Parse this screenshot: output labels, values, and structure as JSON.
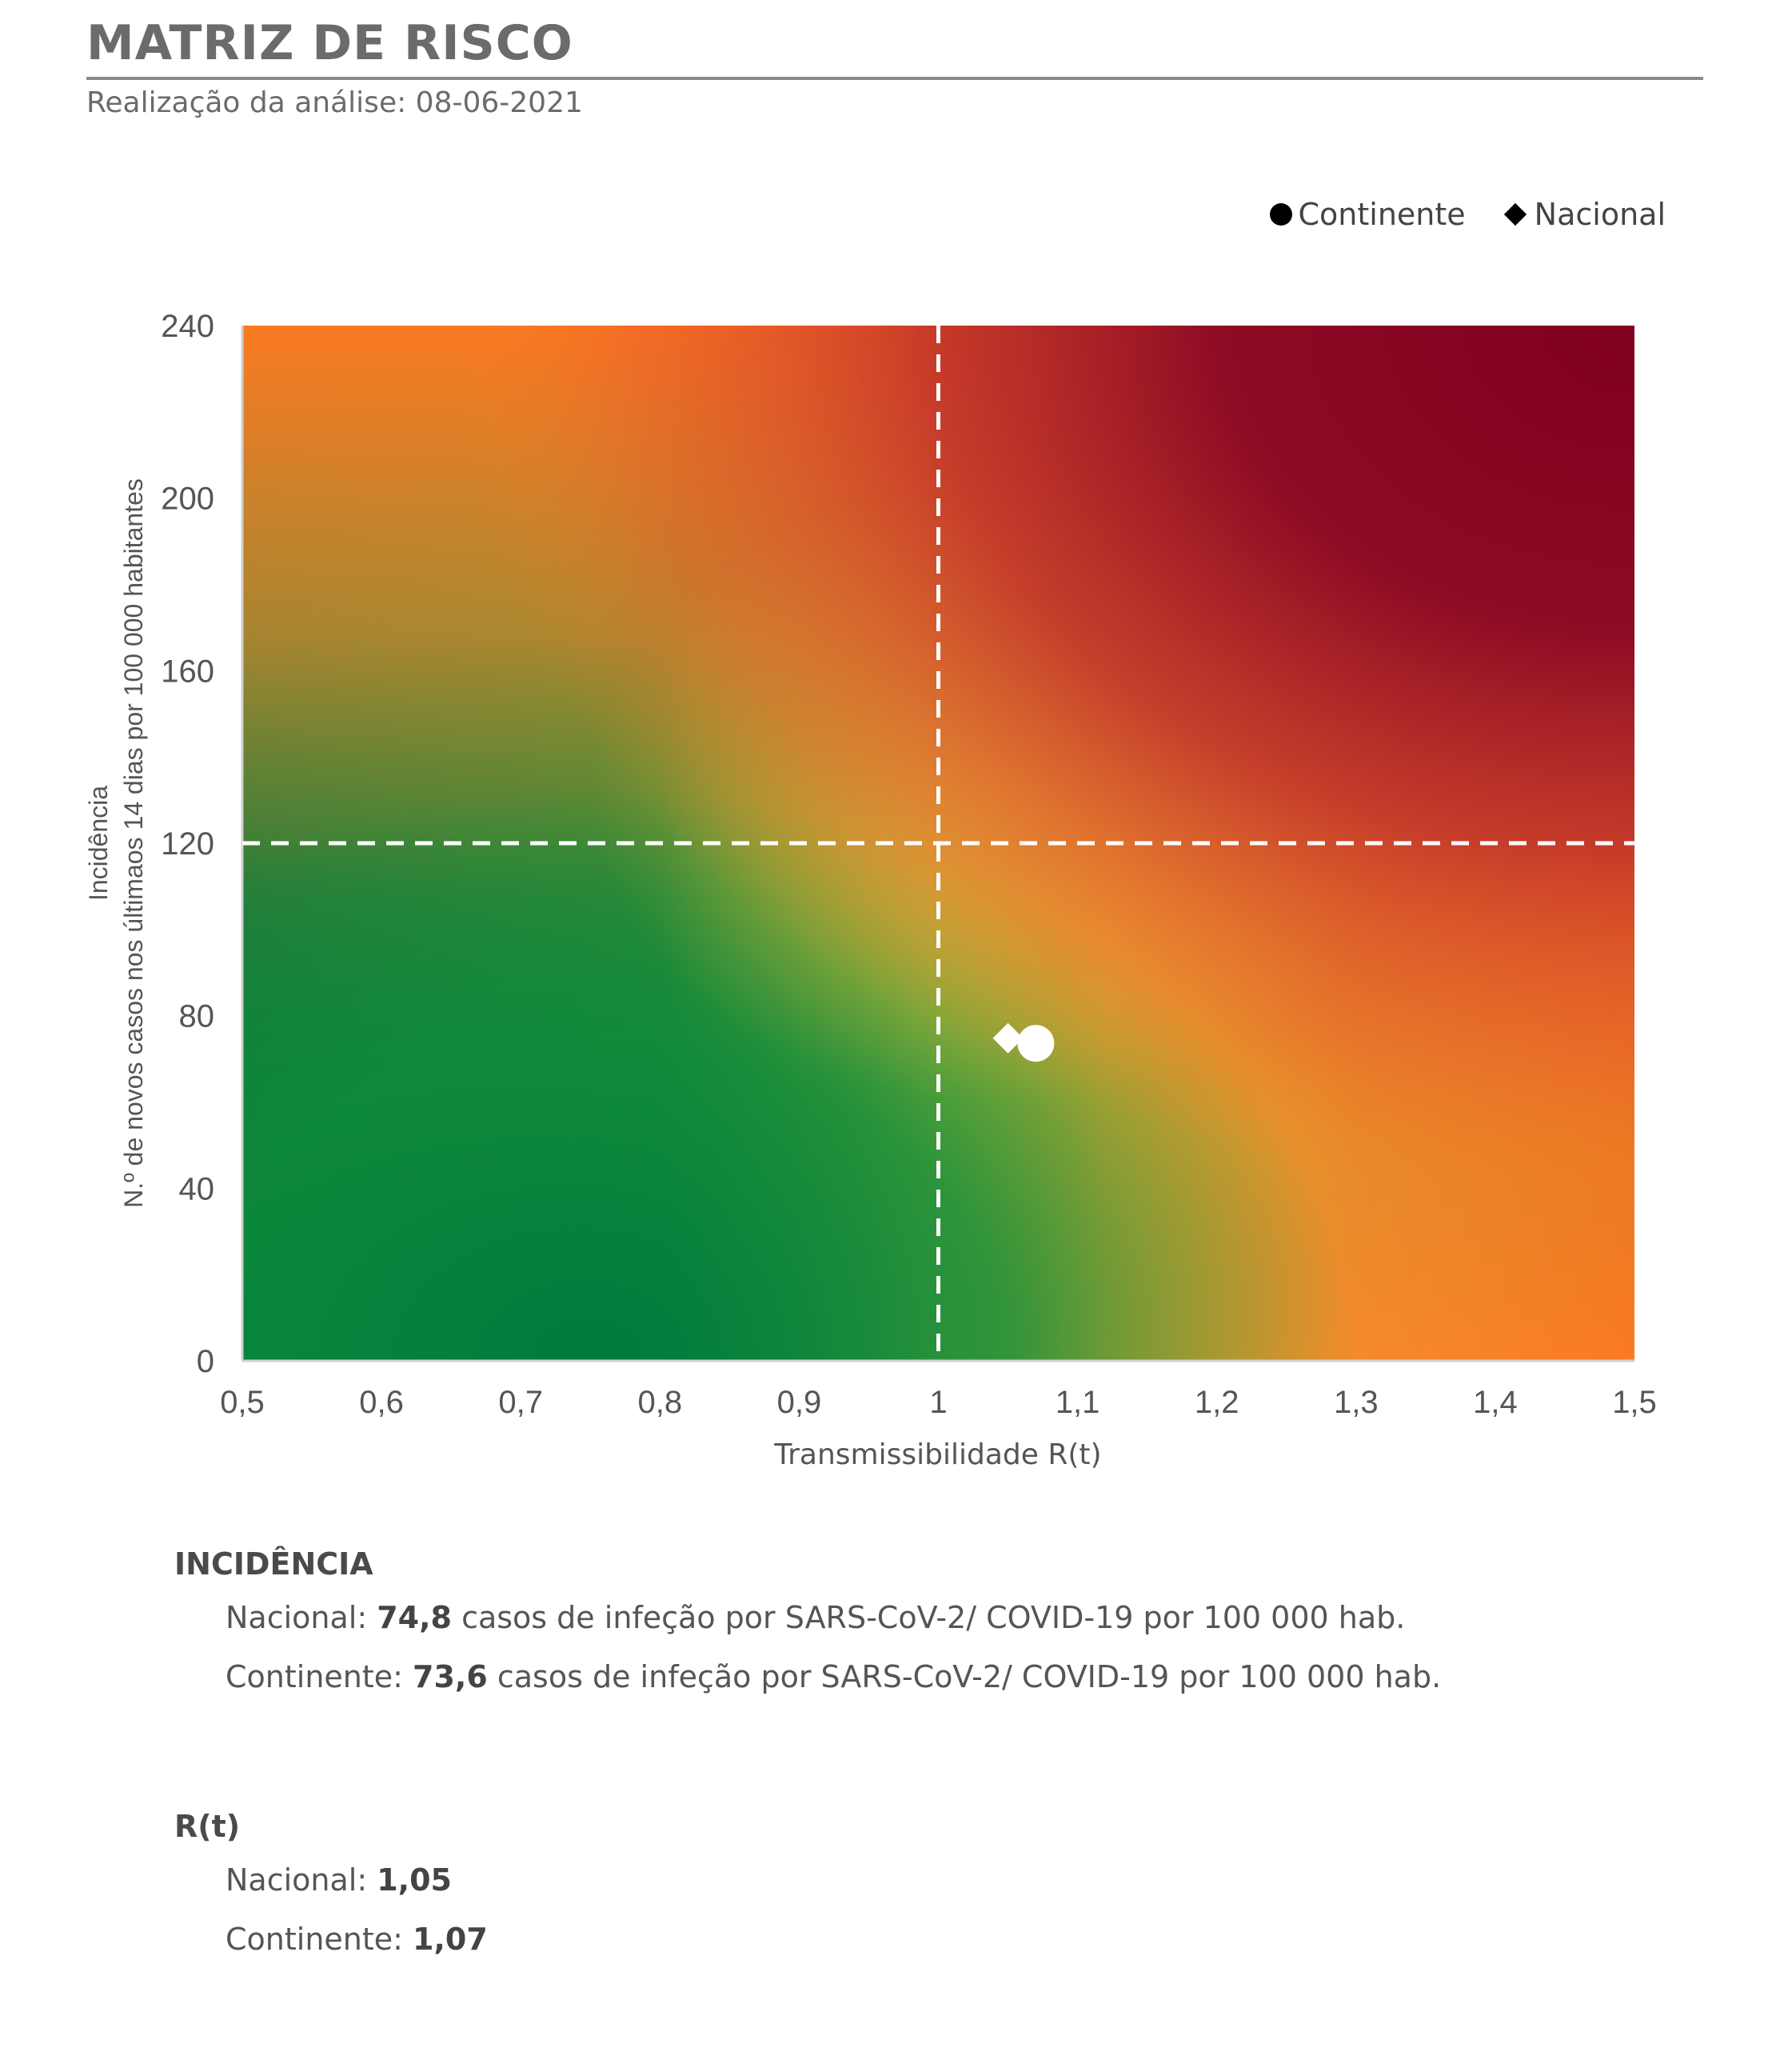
{
  "header": {
    "title": "MATRIZ DE RISCO",
    "subtitle": "Realização da análise: 08-06-2021"
  },
  "chart_data": {
    "type": "scatter",
    "background": "risk-gradient-heatmap",
    "xlabel": "Transmissibilidade R(t)",
    "ylabel_line1": "Incidência",
    "ylabel_line2": "N.º de novos casos nos últimaos 14 dias por 100 000 habitantes",
    "xlim": [
      0.5,
      1.5
    ],
    "ylim": [
      0,
      240
    ],
    "x_ticks": [
      0.5,
      0.6,
      0.7,
      0.8,
      0.9,
      1,
      1.1,
      1.2,
      1.3,
      1.4,
      1.5
    ],
    "x_tick_labels": [
      "0,5",
      "0,6",
      "0,7",
      "0,8",
      "0,9",
      "1",
      "1,1",
      "1,2",
      "1,3",
      "1,4",
      "1,5"
    ],
    "y_ticks": [
      0,
      40,
      80,
      120,
      160,
      200,
      240
    ],
    "y_tick_labels": [
      "0",
      "40",
      "80",
      "120",
      "160",
      "200",
      "240"
    ],
    "threshold_x": 1,
    "threshold_y": 120,
    "legend_position": "top-right",
    "series": [
      {
        "name": "Continente",
        "marker": "circle",
        "x": 1.07,
        "y": 73.6
      },
      {
        "name": "Nacional",
        "marker": "diamond",
        "x": 1.05,
        "y": 74.8
      }
    ],
    "colors": {
      "low": "#007a3d",
      "mid": "#f0b030",
      "orange": "#fb7a22",
      "high": "#8a0023",
      "marker_on_chart": "#ffffff",
      "threshold_line": "#ffffff"
    }
  },
  "legend": {
    "continente": "Continente",
    "nacional": "Nacional"
  },
  "summary": {
    "incidencia": {
      "heading": "INCIDÊNCIA",
      "nacional_label": "Nacional: ",
      "nacional_value": "74,8",
      "nacional_suffix": " casos de infeção por SARS-CoV-2/ COVID-19 por 100 000 hab.",
      "continente_label": "Continente: ",
      "continente_value": "73,6",
      "continente_suffix": " casos de infeção por SARS-CoV-2/ COVID-19 por 100 000 hab."
    },
    "rt": {
      "heading": "R(t)",
      "nacional_label": "Nacional: ",
      "nacional_value": "1,05",
      "continente_label": "Continente: ",
      "continente_value": "1,07"
    }
  }
}
